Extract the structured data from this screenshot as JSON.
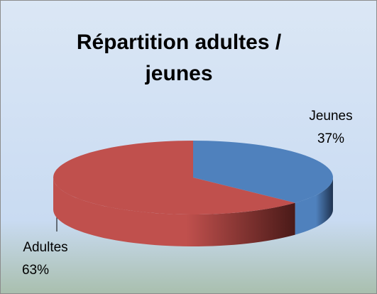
{
  "chart_data": {
    "type": "pie3d",
    "title": "Répartition adultes / jeunes",
    "categories": [
      "Jeunes",
      "Adultes"
    ],
    "values": [
      37,
      63
    ],
    "value_labels": [
      "37%",
      "63%"
    ],
    "colors": [
      "#4f81bd",
      "#c0504d"
    ]
  }
}
